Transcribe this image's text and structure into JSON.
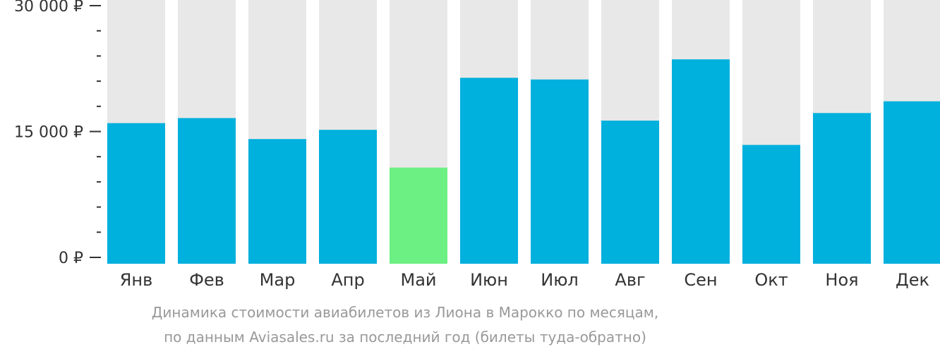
{
  "chart_data": {
    "type": "bar",
    "categories": [
      "Янв",
      "Фев",
      "Мар",
      "Апр",
      "Май",
      "Июн",
      "Июл",
      "Авг",
      "Сен",
      "Окт",
      "Ноя",
      "Дек"
    ],
    "values": [
      16000,
      16600,
      14100,
      15200,
      10700,
      21400,
      21200,
      16300,
      23600,
      13400,
      17200,
      18600
    ],
    "highlight_index": 4,
    "ylim": [
      0,
      30000
    ],
    "y_ticks": [
      {
        "value": 0,
        "label": "0 ₽"
      },
      {
        "value": 15000,
        "label": "15 000 ₽"
      },
      {
        "value": 30000,
        "label": "30 000 ₽"
      }
    ],
    "minor_tick_step": 3000,
    "grid": false,
    "colors": {
      "bar": "#00b0dd",
      "highlight": "#6cf083",
      "background_bar": "#e8e8e8",
      "axis": "#333333"
    },
    "title": "",
    "xlabel": "",
    "ylabel": ""
  },
  "caption": {
    "line1": "Динамика стоимости авиабилетов из Лиона в Марокко по месяцам,",
    "line2": "по данным Aviasales.ru за последний год (билеты туда-обратно)"
  }
}
